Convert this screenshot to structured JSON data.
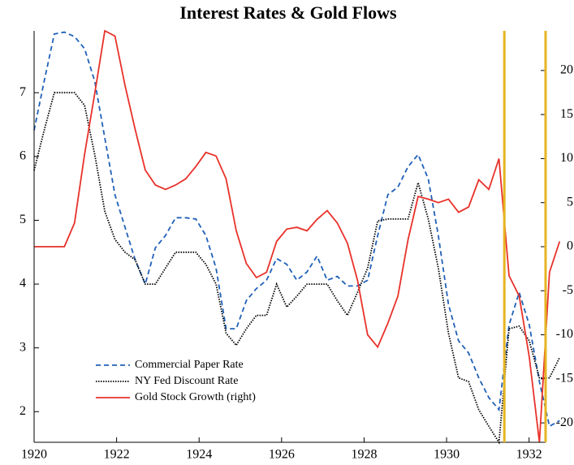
{
  "chart_data": {
    "type": "line",
    "title": "Interest Rates & Gold Flows",
    "x": [
      1920,
      1920.245,
      1920.49,
      1920.735,
      1920.98,
      1921.225,
      1921.47,
      1921.715,
      1921.96,
      1922.205,
      1922.45,
      1922.695,
      1922.94,
      1923.185,
      1923.43,
      1923.675,
      1923.92,
      1924.165,
      1924.41,
      1924.655,
      1924.9,
      1925.145,
      1925.39,
      1925.635,
      1925.88,
      1926.125,
      1926.37,
      1926.615,
      1926.86,
      1927.105,
      1927.35,
      1927.595,
      1927.84,
      1928.085,
      1928.33,
      1928.575,
      1928.82,
      1929.065,
      1929.31,
      1929.555,
      1929.8,
      1930.045,
      1930.29,
      1930.535,
      1930.78,
      1931.025,
      1931.27,
      1931.515,
      1931.76,
      1932.005,
      1932.25,
      1932.495,
      1932.74
    ],
    "series": [
      {
        "name": "Commercial Paper Rate",
        "color": "#2060b8",
        "style": "dashed",
        "axis": "y",
        "values": [
          6.41,
          7.18,
          7.92,
          7.95,
          7.88,
          7.69,
          7.18,
          6.29,
          5.4,
          4.89,
          4.38,
          4.0,
          4.57,
          4.76,
          5.04,
          5.04,
          5.02,
          4.76,
          4.25,
          3.3,
          3.3,
          3.74,
          3.93,
          4.06,
          4.4,
          4.31,
          4.06,
          4.19,
          4.44,
          4.06,
          4.12,
          3.97,
          3.97,
          4.06,
          4.76,
          5.4,
          5.52,
          5.84,
          6.03,
          5.65,
          4.76,
          3.68,
          3.11,
          2.92,
          2.53,
          2.22,
          2.03,
          3.36,
          3.87,
          3.36,
          2.47,
          1.77,
          1.86
        ]
      },
      {
        "name": "NY Fed Discount Rate",
        "color": "#000000",
        "style": "dotted",
        "axis": "y",
        "values": [
          5.78,
          6.41,
          7.0,
          7.0,
          7.0,
          6.8,
          6.03,
          5.14,
          4.7,
          4.5,
          4.38,
          4.0,
          4.0,
          4.25,
          4.5,
          4.5,
          4.5,
          4.31,
          4.0,
          3.23,
          3.04,
          3.3,
          3.51,
          3.51,
          4.0,
          3.64,
          3.81,
          4.0,
          4.0,
          4.0,
          3.74,
          3.51,
          3.87,
          4.25,
          4.99,
          5.02,
          5.02,
          5.02,
          5.59,
          5.02,
          4.25,
          3.23,
          2.53,
          2.47,
          2.03,
          1.77,
          1.52,
          3.3,
          3.34,
          3.11,
          2.53,
          2.53,
          2.85
        ]
      },
      {
        "name": "Gold Stock Growth (right)",
        "color": "#e8312a",
        "style": "solid",
        "axis": "y2",
        "values": [
          0,
          0,
          0,
          0,
          2.7,
          10.5,
          17.4,
          24.5,
          23.9,
          18.3,
          13.3,
          8.7,
          7.0,
          6.5,
          7.0,
          7.7,
          9.1,
          10.7,
          10.3,
          7.7,
          1.8,
          -1.9,
          -3.5,
          -2.9,
          0.6,
          2.0,
          2.2,
          1.8,
          3.1,
          4.1,
          2.7,
          0.4,
          -3.8,
          -10.0,
          -11.4,
          -8.7,
          -5.6,
          0.8,
          5.7,
          5.4,
          5.0,
          5.4,
          3.9,
          4.5,
          7.6,
          6.5,
          10.0,
          -3.3,
          -5.6,
          -12.5,
          -22.2,
          -2.9,
          0.6
        ]
      }
    ],
    "xlim": [
      1920,
      1932.4
    ],
    "xticks": [
      1920,
      1922,
      1924,
      1926,
      1928,
      1930,
      1932
    ],
    "ylim": [
      1.52,
      7.97
    ],
    "yticks": [
      2,
      3,
      4,
      5,
      6,
      7
    ],
    "y2lim": [
      -22.2,
      24.5
    ],
    "y2ticks": [
      -20,
      -15,
      -10,
      -5,
      0,
      5,
      10,
      15,
      20
    ],
    "y2_axis_color": "#e6b422",
    "vline": {
      "x": 1931.4,
      "color": "#e6b422"
    },
    "legend": "lower left"
  }
}
